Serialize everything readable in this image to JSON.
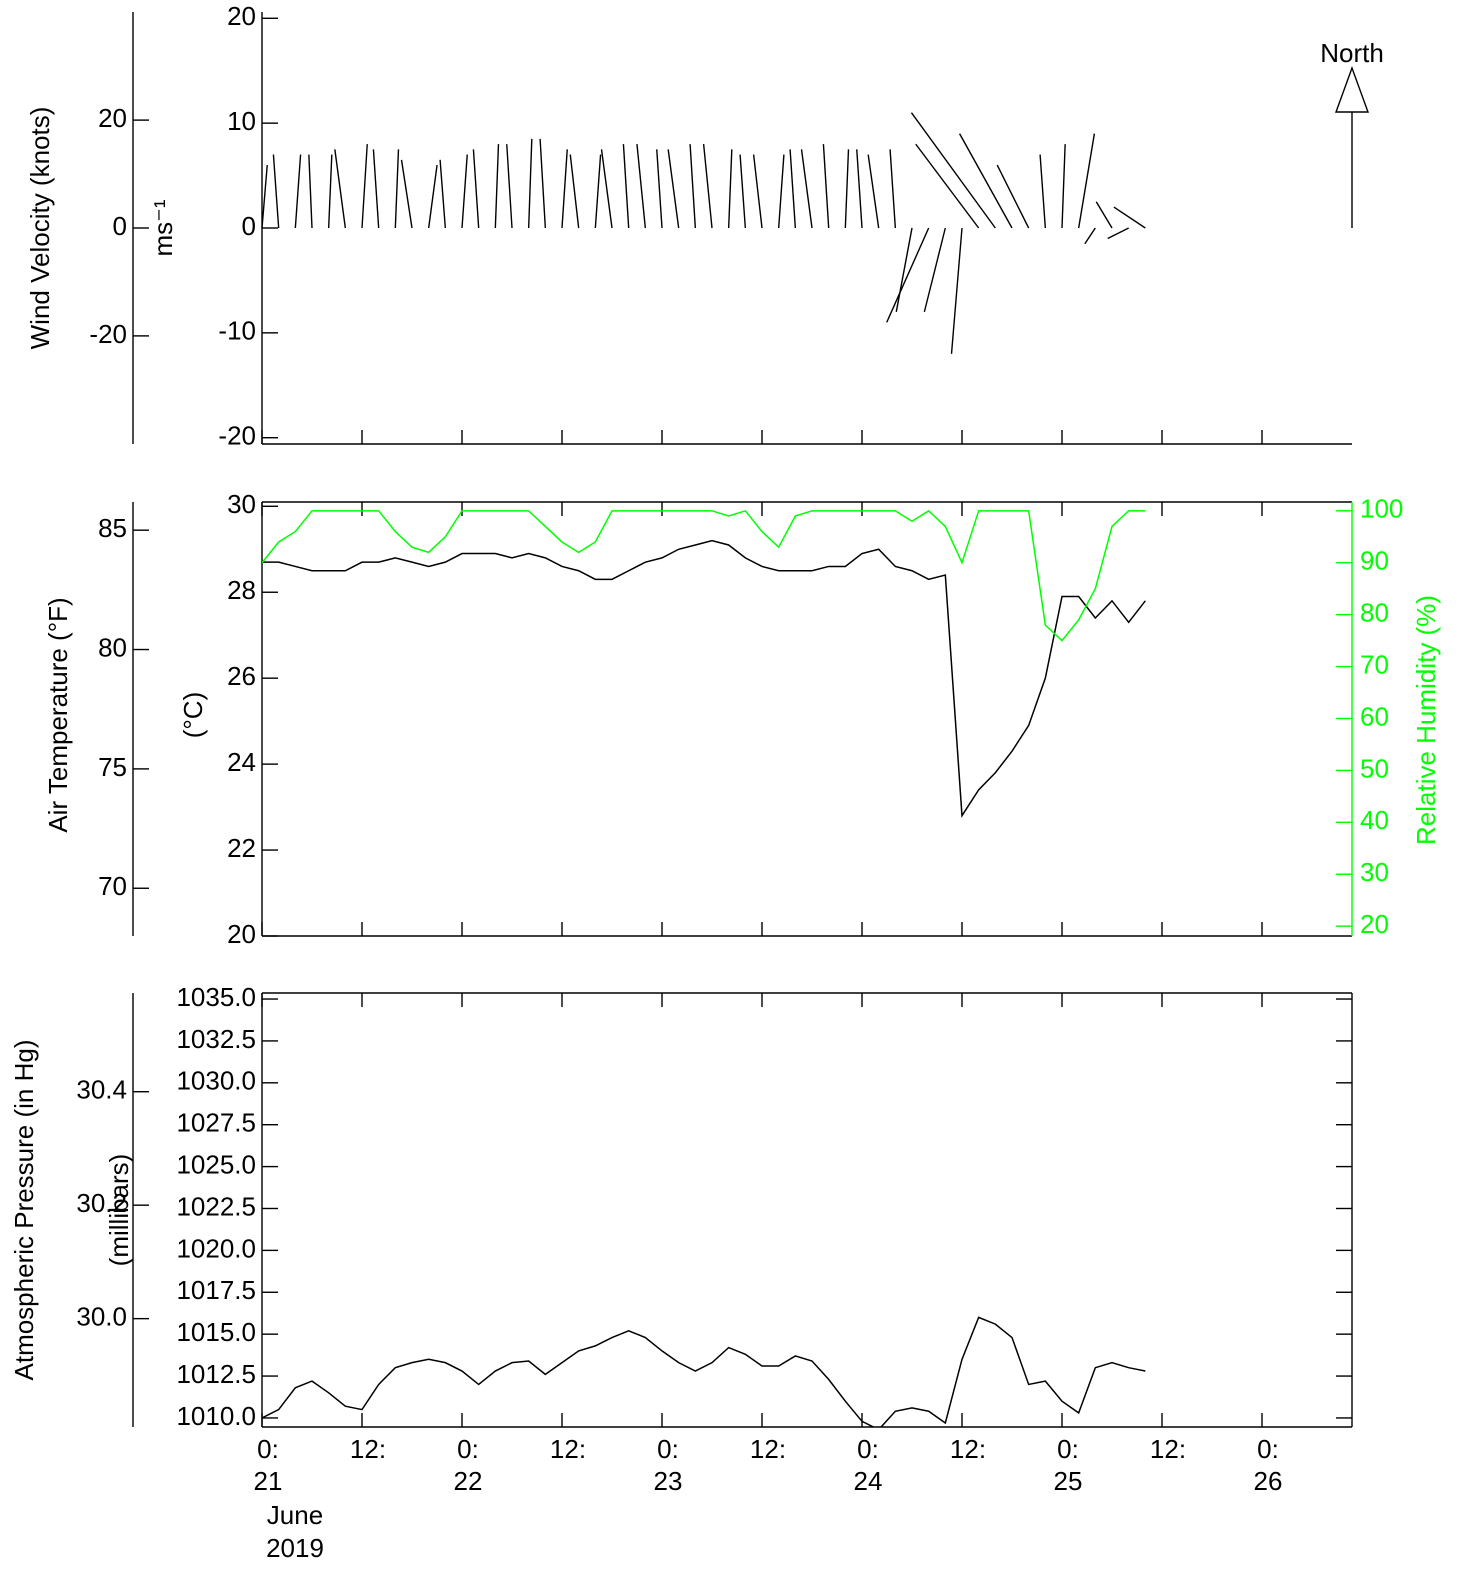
{
  "chart_data": [
    {
      "type": "wind-stick",
      "y_label": "Wind Velocity (knots)",
      "y_label_inner": "ms⁻¹",
      "north_label": "North",
      "color": "#000000",
      "x": [
        0,
        2,
        4,
        6,
        8,
        10,
        12,
        14,
        16,
        18,
        20,
        22,
        24,
        26,
        28,
        30,
        32,
        34,
        36,
        38,
        40,
        42,
        44,
        46,
        48,
        50,
        52,
        54,
        56,
        58,
        60,
        62,
        64,
        66,
        68,
        70,
        72,
        74,
        76,
        78,
        80,
        82,
        84,
        86,
        88,
        90,
        92,
        94,
        96,
        98,
        100,
        102,
        104,
        106
      ],
      "u": [
        0.5,
        -0.5,
        0.5,
        -0.3,
        0.3,
        -1,
        0.5,
        -0.5,
        0.3,
        -1,
        0.8,
        -0.5,
        0.5,
        -0.5,
        0.3,
        -0.5,
        0.3,
        -0.5,
        0.5,
        -0.8,
        0.5,
        -1,
        -0.5,
        -0.8,
        -0.5,
        -1,
        -0.5,
        -0.8,
        0.3,
        -0.5,
        -0.8,
        0.5,
        -0.5,
        -1,
        -0.5,
        0.3,
        -0.5,
        -1,
        -0.5,
        -1.5,
        -4,
        -2,
        -1,
        -6,
        -8,
        -5,
        -3,
        -0.5,
        0.3,
        1.5,
        -1,
        -1.5,
        -2,
        -3
      ],
      "v": [
        6,
        7,
        7,
        7,
        7,
        7.5,
        8,
        7.5,
        7.5,
        6.5,
        6,
        6.5,
        7,
        7.5,
        8,
        8,
        8.5,
        8.5,
        7.5,
        7,
        7,
        7.5,
        8,
        8,
        7.5,
        7.5,
        8,
        8,
        7.5,
        7,
        7,
        7,
        7.5,
        7.5,
        8,
        7.5,
        7.5,
        7,
        7.5,
        -8,
        -9,
        -8,
        -12,
        8,
        11,
        9,
        6,
        7,
        8,
        9,
        -1.5,
        2.5,
        -1,
        2
      ],
      "xlim": [
        0,
        130.8
      ],
      "xticks": [
        0,
        12,
        24,
        36,
        48,
        60,
        72,
        84,
        96,
        108,
        120
      ],
      "ylim": [
        -20.6,
        20.6
      ],
      "yticks": [
        -20,
        -10,
        0,
        10,
        20
      ],
      "yalt_lim": [
        -40.04,
        40.04
      ],
      "yalt_ticks": [
        -20,
        0,
        20
      ]
    },
    {
      "type": "line",
      "y_label": "Air Temperature (°F)",
      "y_label_inner": "(°C)",
      "y2_label": "Relative Humidity (%)",
      "x": [
        0,
        2,
        4,
        6,
        8,
        10,
        12,
        14,
        16,
        18,
        20,
        22,
        24,
        26,
        28,
        30,
        32,
        34,
        36,
        38,
        40,
        42,
        44,
        46,
        48,
        50,
        52,
        54,
        56,
        58,
        60,
        62,
        64,
        66,
        68,
        70,
        72,
        74,
        76,
        78,
        80,
        82,
        84,
        86,
        88,
        90,
        92,
        94,
        96,
        98,
        100,
        102,
        104,
        106
      ],
      "series": [
        {
          "color": "#000000",
          "values": [
            28.7,
            28.7,
            28.6,
            28.5,
            28.5,
            28.5,
            28.7,
            28.7,
            28.8,
            28.7,
            28.6,
            28.7,
            28.9,
            28.9,
            28.9,
            28.8,
            28.9,
            28.8,
            28.6,
            28.5,
            28.3,
            28.3,
            28.5,
            28.7,
            28.8,
            29.0,
            29.1,
            29.2,
            29.1,
            28.8,
            28.6,
            28.5,
            28.5,
            28.5,
            28.6,
            28.6,
            28.9,
            29.0,
            28.6,
            28.5,
            28.3,
            28.4,
            22.8,
            23.4,
            23.8,
            24.3,
            24.9,
            26.0,
            27.9,
            27.9,
            27.4,
            27.8,
            27.3,
            27.8
          ]
        },
        {
          "color": "#00ff00",
          "axis": "y2",
          "values": [
            90,
            94,
            96,
            100,
            100,
            100,
            100,
            100,
            96,
            93,
            92,
            95,
            100,
            100,
            100,
            100,
            100,
            97,
            94,
            92,
            94,
            100,
            100,
            100,
            100,
            100,
            100,
            100,
            99,
            100,
            96,
            93,
            99,
            100,
            100,
            100,
            100,
            100,
            100,
            98,
            100,
            97,
            90,
            100,
            100,
            100,
            100,
            78,
            75,
            79,
            85,
            97,
            100,
            100
          ]
        }
      ],
      "xlim": [
        0,
        130.8
      ],
      "xticks": [
        0,
        12,
        24,
        36,
        48,
        60,
        72,
        84,
        96,
        108,
        120
      ],
      "ylim": [
        20,
        30.1
      ],
      "yticks": [
        20,
        22,
        24,
        26,
        28,
        30
      ],
      "yalt_lim": [
        68,
        86.18
      ],
      "yalt_ticks": [
        70,
        75,
        80,
        85
      ],
      "y2lim": [
        18.1,
        101.7
      ],
      "y2ticks": [
        20,
        30,
        40,
        50,
        60,
        70,
        80,
        90,
        100
      ]
    },
    {
      "type": "line",
      "y_label": "Atmospheric Pressure (in Hg)",
      "y_label_inner": "(millibars)",
      "x_label": [
        "June",
        "2019"
      ],
      "x": [
        0,
        2,
        4,
        6,
        8,
        10,
        12,
        14,
        16,
        18,
        20,
        22,
        24,
        26,
        28,
        30,
        32,
        34,
        36,
        38,
        40,
        42,
        44,
        46,
        48,
        50,
        52,
        54,
        56,
        58,
        60,
        62,
        64,
        66,
        68,
        70,
        72,
        74,
        76,
        78,
        80,
        82,
        84,
        86,
        88,
        90,
        92,
        94,
        96,
        98,
        100,
        102,
        104,
        106
      ],
      "series": [
        {
          "color": "#000000",
          "values": [
            1010.0,
            1010.5,
            1011.8,
            1012.2,
            1011.5,
            1010.7,
            1010.5,
            1012.0,
            1013.0,
            1013.3,
            1013.5,
            1013.3,
            1012.8,
            1012.0,
            1012.8,
            1013.3,
            1013.4,
            1012.6,
            1013.3,
            1014.0,
            1014.3,
            1014.8,
            1015.2,
            1014.8,
            1014.0,
            1013.3,
            1012.8,
            1013.3,
            1014.2,
            1013.8,
            1013.1,
            1013.1,
            1013.7,
            1013.4,
            1012.3,
            1011.0,
            1009.8,
            1009.3,
            1010.4,
            1010.6,
            1010.4,
            1009.7,
            1013.5,
            1016.0,
            1015.6,
            1014.8,
            1012.0,
            1012.2,
            1011.0,
            1010.3,
            1013.0,
            1013.3,
            1013.0,
            1012.8
          ]
        }
      ],
      "xlim": [
        0,
        130.8
      ],
      "xticks": [
        {
          "value": 0,
          "label": [
            "0:",
            "21"
          ]
        },
        {
          "value": 12,
          "label": [
            "12:"
          ]
        },
        {
          "value": 24,
          "label": [
            "0:",
            "22"
          ]
        },
        {
          "value": 36,
          "label": [
            "12:"
          ]
        },
        {
          "value": 48,
          "label": [
            "0:",
            "23"
          ]
        },
        {
          "value": 60,
          "label": [
            "12:"
          ]
        },
        {
          "value": 72,
          "label": [
            "0:",
            "24"
          ]
        },
        {
          "value": 84,
          "label": [
            "12:"
          ]
        },
        {
          "value": 96,
          "label": [
            "0:",
            "25"
          ]
        },
        {
          "value": 108,
          "label": [
            "12:"
          ]
        },
        {
          "value": 120,
          "label": [
            "0:",
            "26"
          ]
        }
      ],
      "ylim": [
        1009.46,
        1035.36
      ],
      "yticks": [
        {
          "value": 1010,
          "label": "1010.0"
        },
        1012.5,
        {
          "value": 1015,
          "label": "1015.0"
        },
        1017.5,
        {
          "value": 1020,
          "label": "1020.0"
        },
        1022.5,
        {
          "value": 1025,
          "label": "1025.0"
        },
        1027.5,
        {
          "value": 1030,
          "label": "1030.0"
        },
        1032.5,
        {
          "value": 1035,
          "label": "1035.0"
        }
      ],
      "yalt_lim": [
        29.809,
        30.574
      ],
      "yalt_ticks": [
        {
          "value": 30,
          "label": "30.0"
        },
        30.2,
        30.4
      ]
    }
  ]
}
